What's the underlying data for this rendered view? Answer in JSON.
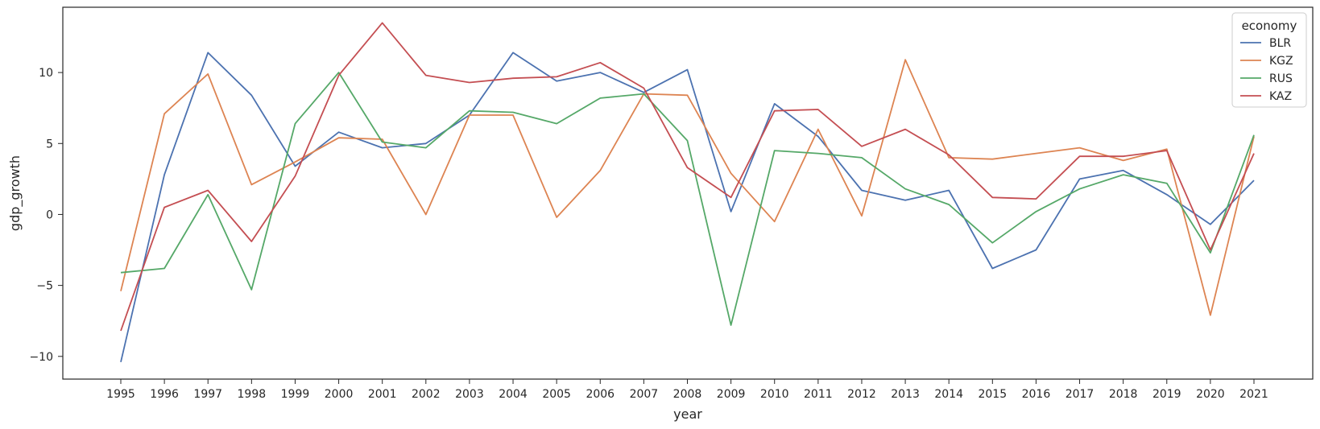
{
  "chart_data": {
    "type": "line",
    "xlabel": "year",
    "ylabel": "gdp_growth",
    "ylim": [
      -11.6,
      14.6
    ],
    "yticks": [
      -10,
      -5,
      0,
      5,
      10
    ],
    "ytick_labels": [
      "−10",
      "−5",
      "0",
      "5",
      "10"
    ],
    "x": [
      1995,
      1996,
      1997,
      1998,
      1999,
      2000,
      2001,
      2002,
      2003,
      2004,
      2005,
      2006,
      2007,
      2008,
      2009,
      2010,
      2011,
      2012,
      2013,
      2014,
      2015,
      2016,
      2017,
      2018,
      2019,
      2020,
      2021
    ],
    "grid": false,
    "legend": {
      "title": "economy",
      "position": "top-right"
    },
    "series": [
      {
        "name": "BLR",
        "color": "#4c72b0",
        "values": [
          -10.4,
          2.8,
          11.4,
          8.4,
          3.4,
          5.8,
          4.7,
          5.0,
          7.0,
          11.4,
          9.4,
          10.0,
          8.6,
          10.2,
          0.2,
          7.8,
          5.5,
          1.7,
          1.0,
          1.7,
          -3.8,
          -2.5,
          2.5,
          3.1,
          1.4,
          -0.7,
          2.4
        ]
      },
      {
        "name": "KGZ",
        "color": "#dd8452",
        "values": [
          -5.4,
          7.1,
          9.9,
          2.1,
          3.7,
          5.4,
          5.3,
          0.0,
          7.0,
          7.0,
          -0.2,
          3.1,
          8.5,
          8.4,
          2.9,
          -0.5,
          6.0,
          -0.1,
          10.9,
          4.0,
          3.9,
          4.3,
          4.7,
          3.8,
          4.6,
          -7.1,
          5.5
        ]
      },
      {
        "name": "RUS",
        "color": "#55a868",
        "values": [
          -4.1,
          -3.8,
          1.4,
          -5.3,
          6.4,
          10.0,
          5.1,
          4.7,
          7.3,
          7.2,
          6.4,
          8.2,
          8.5,
          5.2,
          -7.8,
          4.5,
          4.3,
          4.0,
          1.8,
          0.7,
          -2.0,
          0.2,
          1.8,
          2.8,
          2.2,
          -2.7,
          5.6
        ]
      },
      {
        "name": "KAZ",
        "color": "#c44e52",
        "values": [
          -8.2,
          0.5,
          1.7,
          -1.9,
          2.7,
          9.8,
          13.5,
          9.8,
          9.3,
          9.6,
          9.7,
          10.7,
          8.9,
          3.3,
          1.2,
          7.3,
          7.4,
          4.8,
          6.0,
          4.2,
          1.2,
          1.1,
          4.1,
          4.1,
          4.5,
          -2.5,
          4.3
        ]
      }
    ]
  }
}
